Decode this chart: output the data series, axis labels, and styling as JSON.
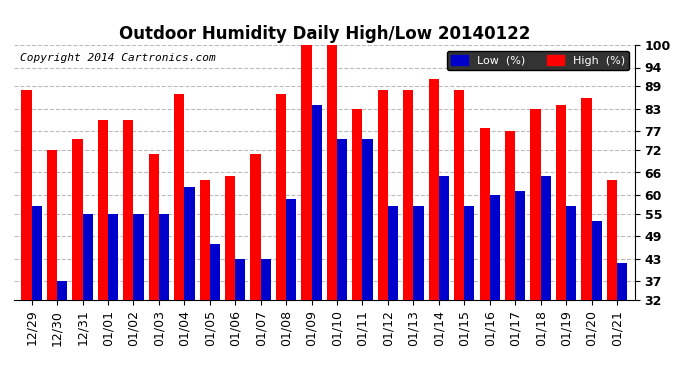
{
  "title": "Outdoor Humidity Daily High/Low 20140122",
  "copyright": "Copyright 2014 Cartronics.com",
  "legend_low": "Low  (%)",
  "legend_high": "High  (%)",
  "labels": [
    "12/29",
    "12/30",
    "12/31",
    "01/01",
    "01/02",
    "01/03",
    "01/04",
    "01/05",
    "01/06",
    "01/07",
    "01/08",
    "01/09",
    "01/10",
    "01/11",
    "01/12",
    "01/13",
    "01/14",
    "01/15",
    "01/16",
    "01/17",
    "01/18",
    "01/19",
    "01/20",
    "01/21"
  ],
  "high": [
    88,
    72,
    75,
    80,
    80,
    71,
    87,
    64,
    65,
    71,
    87,
    100,
    100,
    83,
    88,
    88,
    91,
    88,
    78,
    77,
    83,
    84,
    86,
    64
  ],
  "low": [
    57,
    37,
    55,
    55,
    55,
    55,
    62,
    47,
    43,
    43,
    59,
    84,
    75,
    75,
    57,
    57,
    65,
    57,
    60,
    61,
    65,
    57,
    53,
    42
  ],
  "bar_color_high": "#ff0000",
  "bar_color_low": "#0000cc",
  "background_color": "#ffffff",
  "plot_bg_color": "#ffffff",
  "grid_color": "#bbbbbb",
  "ymin": 32,
  "ymax": 100,
  "yticks": [
    32,
    37,
    43,
    49,
    55,
    60,
    66,
    72,
    77,
    83,
    89,
    94,
    100
  ],
  "title_fontsize": 12,
  "tick_fontsize": 9,
  "legend_fontsize": 8,
  "copyright_fontsize": 8
}
